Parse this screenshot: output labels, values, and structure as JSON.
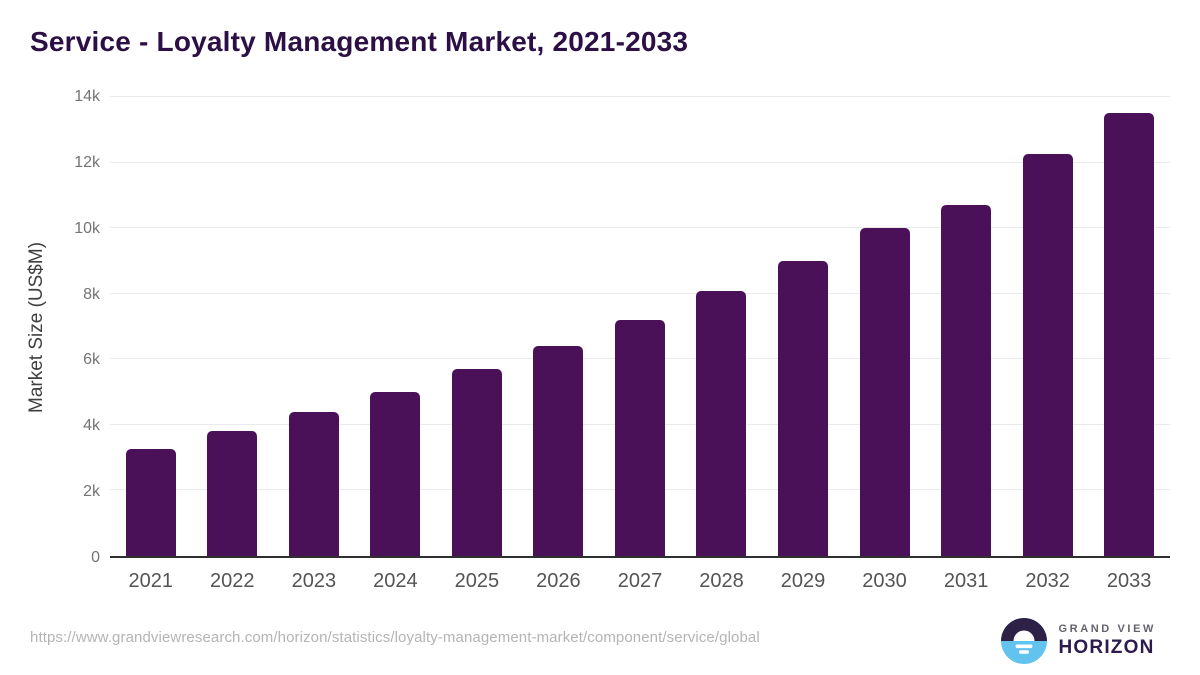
{
  "title": "Service - Loyalty Management Market, 2021-2033",
  "chart_data": {
    "type": "bar",
    "title": "Service - Loyalty Management Market, 2021-2033",
    "categories": [
      "2021",
      "2022",
      "2023",
      "2024",
      "2025",
      "2026",
      "2027",
      "2028",
      "2029",
      "2030",
      "2031",
      "2032",
      "2033"
    ],
    "values": [
      3250,
      3800,
      4400,
      5000,
      5700,
      6400,
      7200,
      8080,
      9000,
      10000,
      10700,
      12250,
      13500
    ],
    "xlabel": "",
    "ylabel": "Market Size (US$M)",
    "ylim": [
      0,
      14000
    ],
    "ytick_values": [
      0,
      2000,
      4000,
      6000,
      8000,
      10000,
      12000,
      14000
    ],
    "ytick_labels": [
      "0",
      "2k",
      "4k",
      "6k",
      "8k",
      "10k",
      "12k",
      "14k"
    ],
    "grid": true,
    "legend": false,
    "bar_color": "#4a1158"
  },
  "colors": {
    "title": "#2c1045",
    "bar": "#4a1158",
    "gridline": "#eaeaec",
    "axis_line": "#2f2f31",
    "tick_label": "#747476",
    "x_label": "#545456",
    "url_text": "#b4b4b4",
    "logo_dark": "#2d1b4e",
    "logo_blue": "#62c3ee"
  },
  "footer": {
    "source_url": "https://www.grandviewresearch.com/horizon/statistics/loyalty-management-market/component/service/global",
    "logo": {
      "line1": "GRAND VIEW",
      "line2": "HORIZON"
    }
  }
}
